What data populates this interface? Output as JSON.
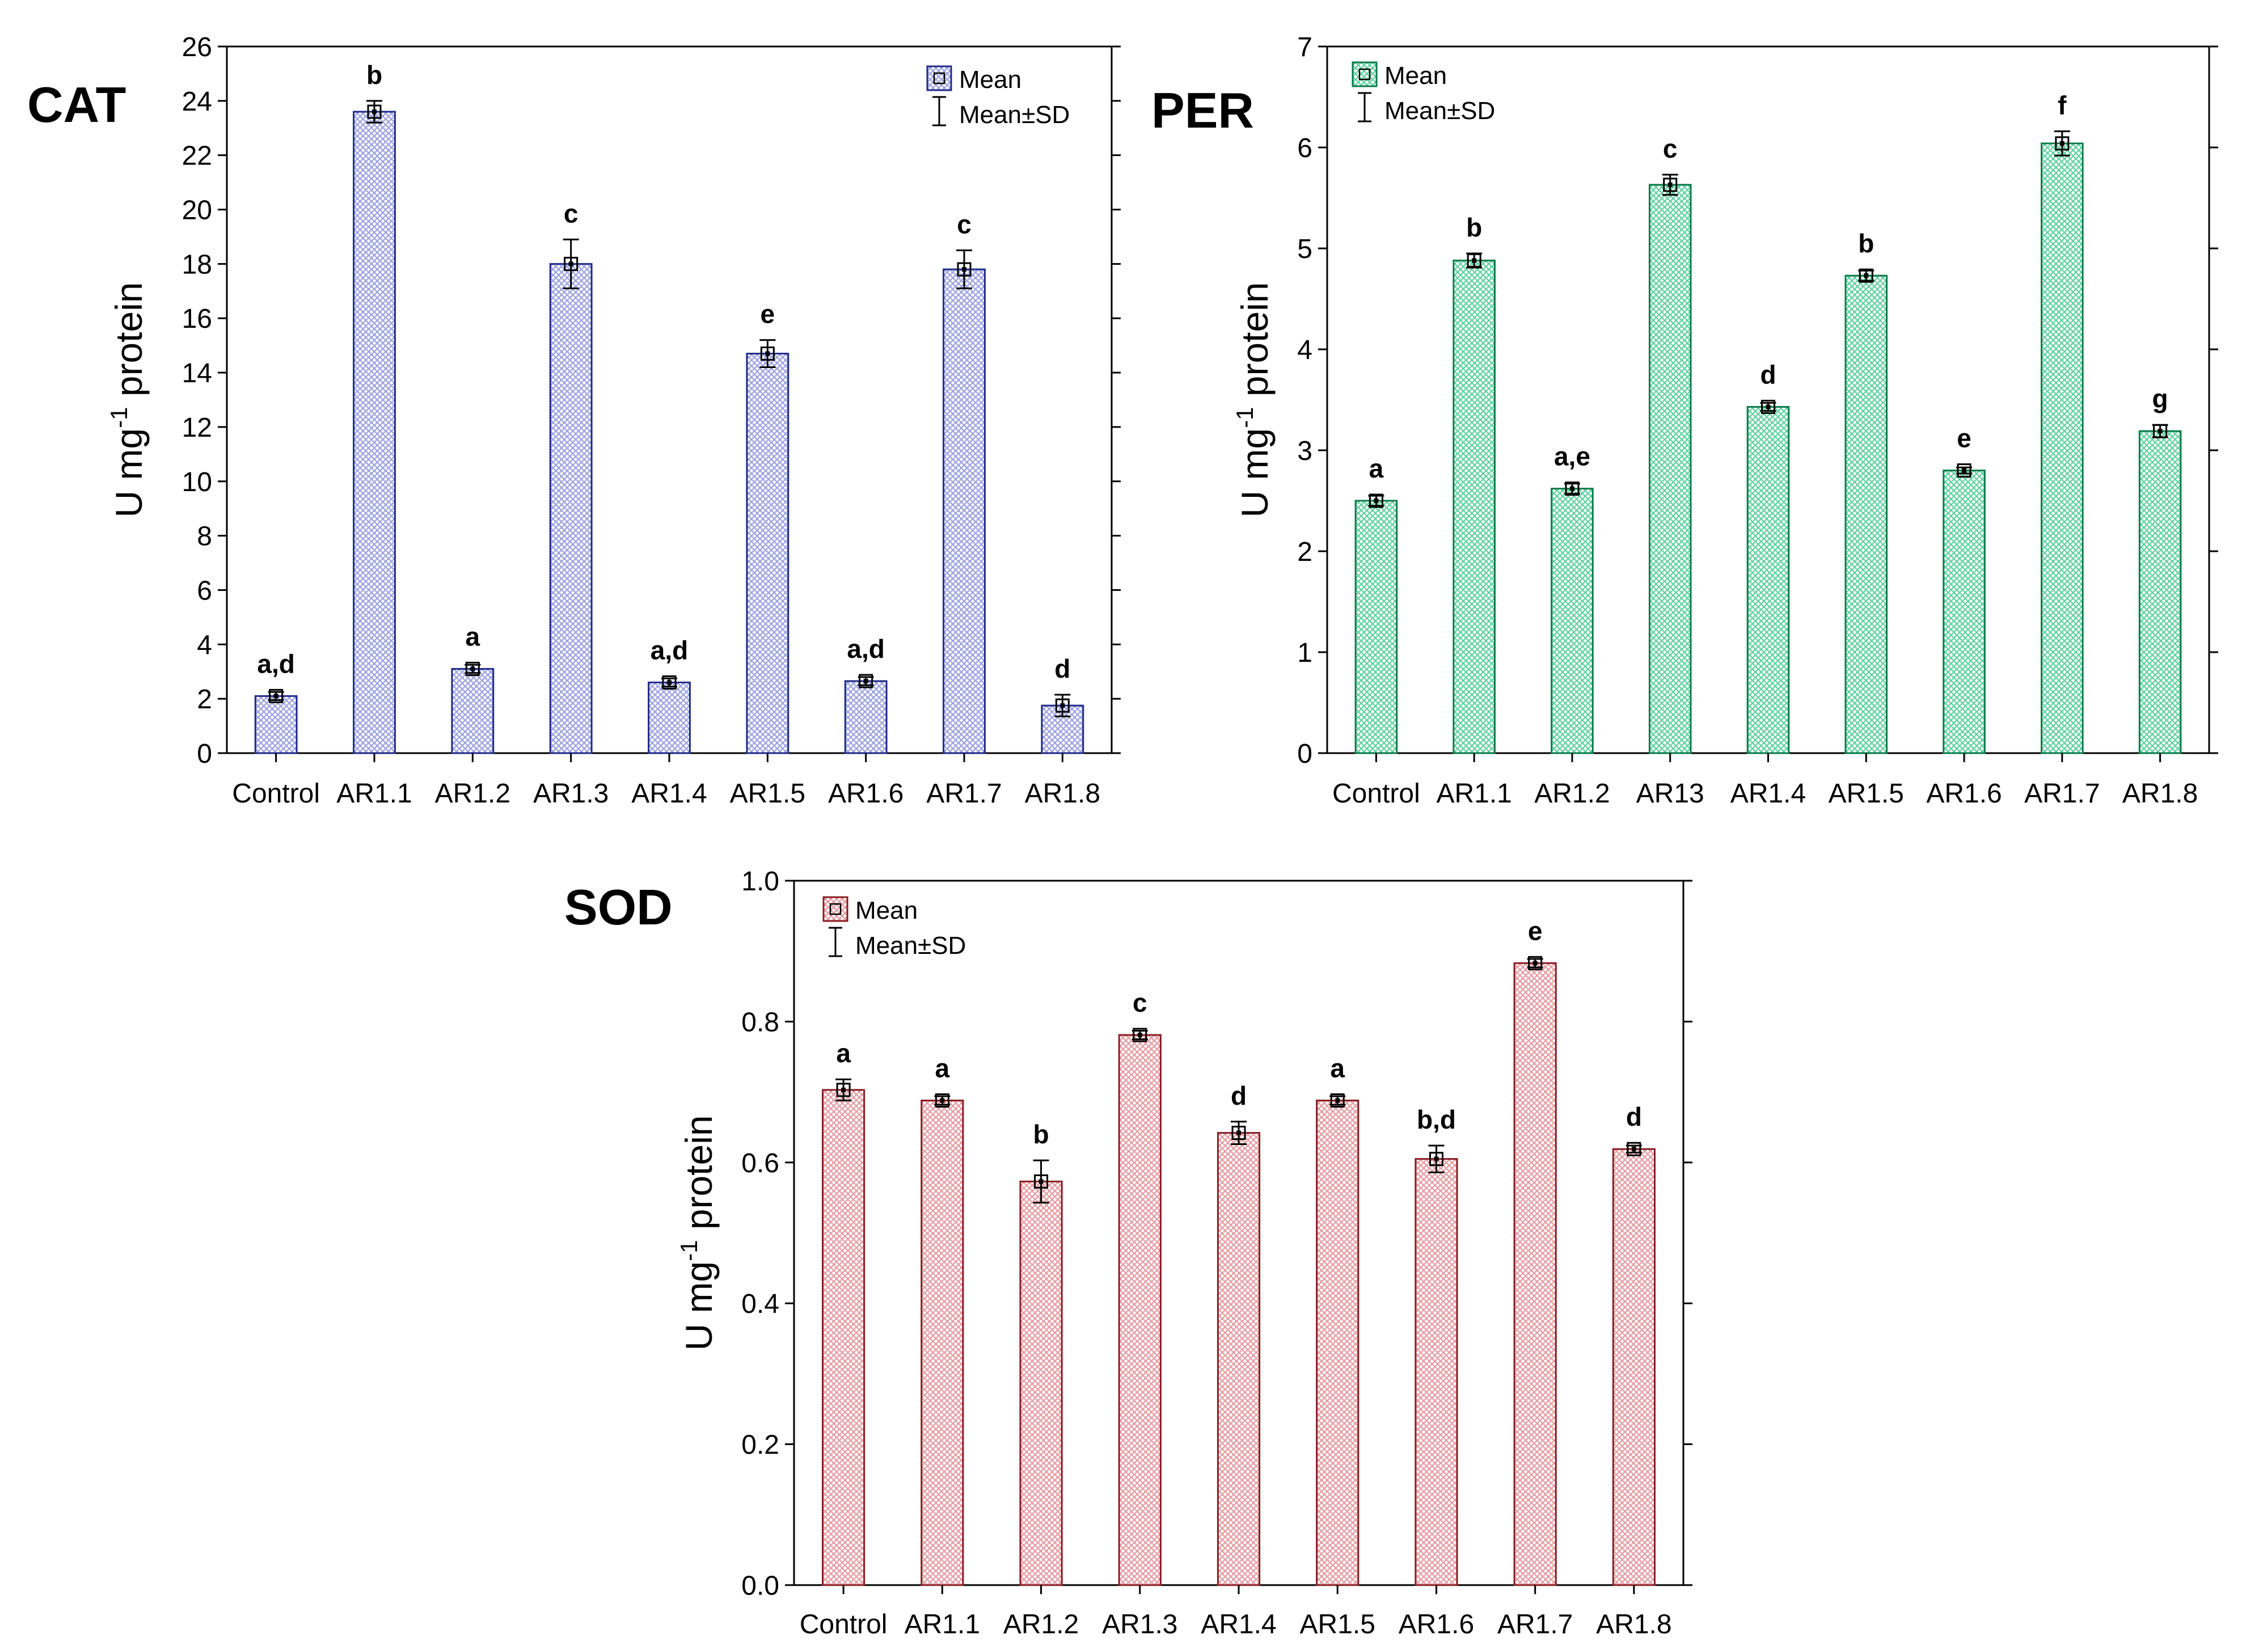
{
  "chart_data": [
    {
      "id": "cat",
      "type": "bar",
      "title": "CAT",
      "ylabel_main": "U mg",
      "ylabel_sup": "-1",
      "ylabel_tail": " protein",
      "categories": [
        "Control",
        "AR1.1",
        "AR1.2",
        "AR1.3",
        "AR1.4",
        "AR1.5",
        "AR1.6",
        "AR1.7",
        "AR1.8"
      ],
      "values": [
        2.1,
        23.6,
        3.1,
        18.0,
        2.6,
        14.7,
        2.65,
        17.8,
        1.75
      ],
      "sd": [
        0.15,
        0.4,
        0.15,
        0.9,
        0.15,
        0.5,
        0.15,
        0.7,
        0.4
      ],
      "letters": [
        "a,d",
        "b",
        "a",
        "c",
        "a,d",
        "e",
        "a,d",
        "c",
        "d"
      ],
      "ylim": [
        0,
        26
      ],
      "ticks": [
        0,
        2,
        4,
        6,
        8,
        10,
        12,
        14,
        16,
        18,
        20,
        22,
        24,
        26
      ],
      "tick_decimals": 0,
      "color": "#1f2a8a",
      "fill": "#9aa0e0",
      "legend": [
        "Mean",
        "Mean±SD"
      ],
      "legend_position": "top-right"
    },
    {
      "id": "per",
      "type": "bar",
      "title": "PER",
      "ylabel_main": "U mg",
      "ylabel_sup": "-1",
      "ylabel_tail": " protein",
      "categories": [
        "Control",
        "AR1.1",
        "AR1.2",
        "AR13",
        "AR1.4",
        "AR1.5",
        "AR1.6",
        "AR1.7",
        "AR1.8"
      ],
      "values": [
        2.5,
        4.88,
        2.62,
        5.63,
        3.43,
        4.73,
        2.8,
        6.04,
        3.19
      ],
      "sd": [
        0.05,
        0.07,
        0.05,
        0.1,
        0.04,
        0.05,
        0.03,
        0.12,
        0.06
      ],
      "letters": [
        "a",
        "b",
        "a,e",
        "c",
        "d",
        "b",
        "e",
        "f",
        "g"
      ],
      "ylim": [
        0,
        7
      ],
      "ticks": [
        0,
        1,
        2,
        3,
        4,
        5,
        6,
        7
      ],
      "tick_decimals": 0,
      "color": "#0a7a4a",
      "fill": "#5ed0a0",
      "legend": [
        "Mean",
        "Mean±SD"
      ],
      "legend_position": "top-left"
    },
    {
      "id": "sod",
      "type": "bar",
      "title": "SOD",
      "ylabel_main": "U mg",
      "ylabel_sup": "-1",
      "ylabel_tail": " protein",
      "categories": [
        "Control",
        "AR1.1",
        "AR1.2",
        "AR1.3",
        "AR1.4",
        "AR1.5",
        "AR1.6",
        "AR1.7",
        "AR1.8"
      ],
      "values": [
        0.703,
        0.688,
        0.573,
        0.781,
        0.642,
        0.688,
        0.605,
        0.883,
        0.619
      ],
      "sd": [
        0.015,
        0.006,
        0.03,
        0.006,
        0.016,
        0.006,
        0.019,
        0.006,
        0.005
      ],
      "letters": [
        "a",
        "a",
        "b",
        "c",
        "d",
        "a",
        "b,d",
        "e",
        "d"
      ],
      "ylim": [
        0,
        1
      ],
      "ticks": [
        0,
        0.2,
        0.4,
        0.6,
        0.8,
        1.0
      ],
      "tick_decimals": 1,
      "color": "#8a1c22",
      "fill": "#e59aa0",
      "legend": [
        "Mean",
        "Mean±SD"
      ],
      "legend_position": "top-left"
    }
  ]
}
